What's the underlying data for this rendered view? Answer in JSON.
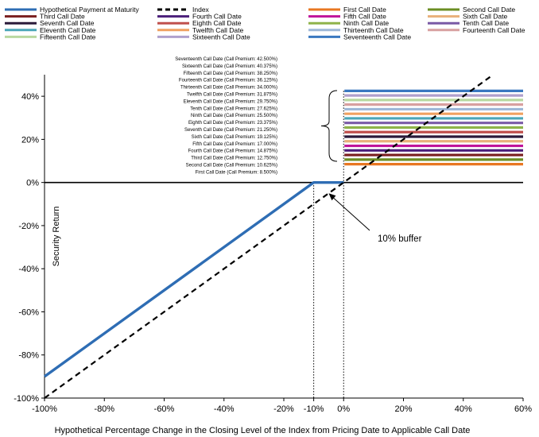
{
  "chart_data": {
    "type": "line",
    "xlabel": "Hypothetical Percentage Change in the Closing Level of the Index from Pricing Date to Applicable Call Date",
    "ylabel": "Security Return",
    "xlim": [
      -100,
      60
    ],
    "ylim": [
      -100,
      50
    ],
    "x_ticks": [
      "-100%",
      "-80%",
      "-60%",
      "-40%",
      "-20%",
      "-10%",
      "0%",
      "20%",
      "40%",
      "60%"
    ],
    "y_ticks": [
      "40%",
      "20%",
      "0%",
      "-20%",
      "-40%",
      "-60%",
      "-80%",
      "-100%"
    ],
    "legend_position": "top",
    "series": [
      {
        "name": "Hypothetical Payment at Maturity",
        "color": "#2e6db4",
        "style": "solid",
        "points": [
          [
            -100,
            -90
          ],
          [
            -10,
            0
          ],
          [
            0,
            0
          ]
        ]
      },
      {
        "name": "Index",
        "color": "#000000",
        "style": "dashed",
        "points": [
          [
            -100,
            -100
          ],
          [
            50,
            50
          ]
        ]
      }
    ],
    "call_dates": [
      {
        "name": "First Call Date",
        "premium": "8.500%",
        "value": 8.5,
        "color": "#e87722"
      },
      {
        "name": "Second Call Date",
        "premium": "10.625%",
        "value": 10.625,
        "color": "#6b8e23"
      },
      {
        "name": "Third Call Date",
        "premium": "12.750%",
        "value": 12.75,
        "color": "#7a1f1f"
      },
      {
        "name": "Fourth Call Date",
        "premium": "14.875%",
        "value": 14.875,
        "color": "#4b1f7a"
      },
      {
        "name": "Fifth Call Date",
        "premium": "17.000%",
        "value": 17.0,
        "color": "#c0139a"
      },
      {
        "name": "Sixth Call Date",
        "premium": "19.125%",
        "value": 19.125,
        "color": "#e8b07a"
      },
      {
        "name": "Seventh Call Date",
        "premium": "21.250%",
        "value": 21.25,
        "color": "#2a1a3a"
      },
      {
        "name": "Eighth Call Date",
        "premium": "23.375%",
        "value": 23.375,
        "color": "#c0504d"
      },
      {
        "name": "Ninth Call Date",
        "premium": "25.500%",
        "value": 25.5,
        "color": "#8fb34a"
      },
      {
        "name": "Tenth Call Date",
        "premium": "27.625%",
        "value": 27.625,
        "color": "#7a5aa6"
      },
      {
        "name": "Eleventh Call Date",
        "premium": "29.750%",
        "value": 29.75,
        "color": "#4aa6b8"
      },
      {
        "name": "Twelfth Call Date",
        "premium": "31.875%",
        "value": 31.875,
        "color": "#f0a060"
      },
      {
        "name": "Thirteenth Call Date",
        "premium": "34.000%",
        "value": 34.0,
        "color": "#9db7d8"
      },
      {
        "name": "Fourteenth Call Date",
        "premium": "36.125%",
        "value": 36.125,
        "color": "#d8a0a0"
      },
      {
        "name": "Fifteenth Call Date",
        "premium": "38.250%",
        "value": 38.25,
        "color": "#b8d8a0"
      },
      {
        "name": "Sixteenth Call Date",
        "premium": "40.375%",
        "value": 40.375,
        "color": "#b0a0cc"
      },
      {
        "name": "Seventeenth Call Date",
        "premium": "42.500%",
        "value": 42.5,
        "color": "#3a78c0"
      }
    ],
    "call_range": [
      0,
      60
    ],
    "annotation_label": "Call Date (Call Premium:",
    "buffer_label": "10% buffer",
    "buffer_arrow_target": [
      -5,
      -5
    ]
  }
}
